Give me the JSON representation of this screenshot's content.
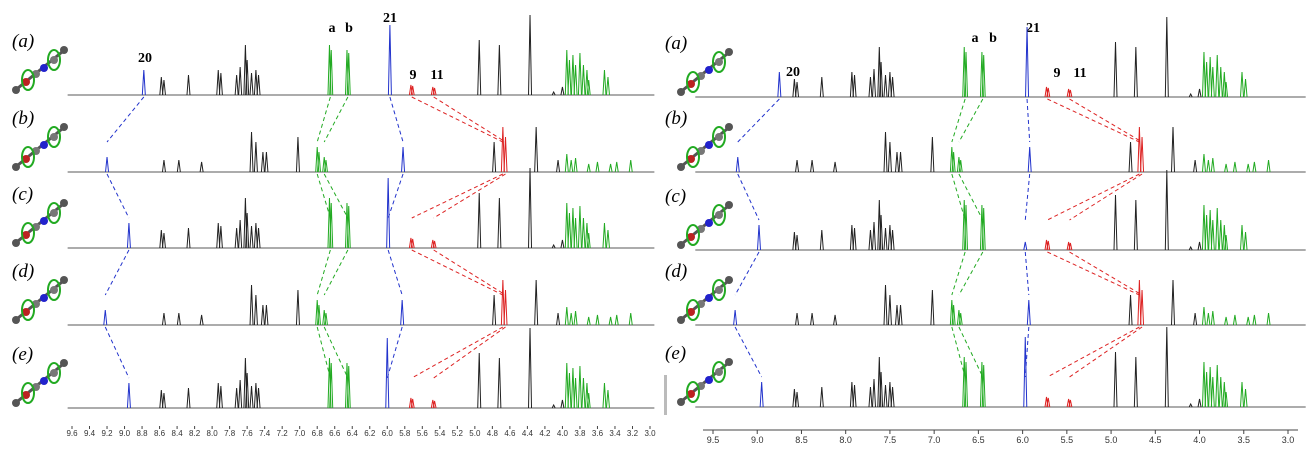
{
  "left_panel": {
    "row_labels": [
      "(a)",
      "(b)",
      "(c)",
      "(d)",
      "(e)"
    ],
    "peak_labels": [
      "20",
      "a",
      "b",
      "21",
      "9",
      "11"
    ],
    "axis_ticks": [
      "9.6",
      "9.4",
      "9.2",
      "9.0",
      "8.8",
      "8.6",
      "8.4",
      "8.2",
      "8.0",
      "7.8",
      "7.6",
      "7.4",
      "7.2",
      "7.0",
      "6.8",
      "6.6",
      "6.4",
      "6.2",
      "6.0",
      "5.8",
      "5.6",
      "5.4",
      "5.2",
      "5.0",
      "4.8",
      "4.6",
      "4.4",
      "4.2",
      "4.0",
      "3.8",
      "3.6",
      "3.4",
      "3.2",
      "3.0"
    ]
  },
  "right_panel": {
    "row_labels": [
      "(a)",
      "(b)",
      "(c)",
      "(d)",
      "(e)"
    ],
    "peak_labels": [
      "20",
      "a",
      "b",
      "21",
      "9",
      "11"
    ],
    "axis_ticks": [
      "9.5",
      "9.0",
      "8.5",
      "8.0",
      "7.5",
      "7.0",
      "6.5",
      "6.0",
      "5.5",
      "5.0",
      "4.5",
      "4.0",
      "3.5",
      "3.0"
    ]
  }
}
